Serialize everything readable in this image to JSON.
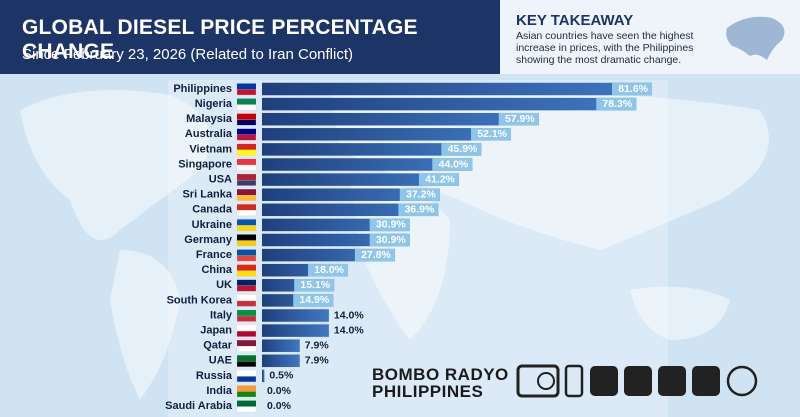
{
  "header": {
    "title": "GLOBAL DIESEL PRICE PERCENTAGE CHANGE",
    "subtitle": "Since February 23, 2026 (Related to Iran Conflict)"
  },
  "key_takeaway": {
    "title": "KEY TAKEAWAY",
    "text": "Asian countries have seen the highest increase in prices, with the Philippines showing the most dramatic change."
  },
  "chart_data": {
    "type": "bar",
    "orientation": "horizontal",
    "categories": [
      "Philippines",
      "Nigeria",
      "Malaysia",
      "Australia",
      "Vietnam",
      "Singapore",
      "USA",
      "Sri Lanka",
      "Canada",
      "Ukraine",
      "Germany",
      "France",
      "China",
      "UK",
      "South Korea",
      "Italy",
      "Japan",
      "Qatar",
      "UAE",
      "Russia",
      "India",
      "Saudi Arabia"
    ],
    "values": [
      81.6,
      78.3,
      57.9,
      52.1,
      45.9,
      44.0,
      41.2,
      37.2,
      36.9,
      30.9,
      30.9,
      27.8,
      18.0,
      15.1,
      14.9,
      14.0,
      14.0,
      7.9,
      7.9,
      0.5,
      0.0,
      0.0
    ],
    "value_labels": [
      "81.6%",
      "78.3%",
      "57.9%",
      "52.1%",
      "45.9%",
      "44.0%",
      "41.2%",
      "37.2%",
      "36.9%",
      "30.9%",
      "30.9%",
      "27.8%",
      "18.0%",
      "15.1%",
      "14.9%",
      "14.0%",
      "14.0%",
      "7.9%",
      "7.9%",
      "0.5%",
      "0.0%",
      "0.0%"
    ],
    "color": "#1f3f7c"
  },
  "branding": {
    "line1": "BOMBO RADYO",
    "line2": "PHILIPPINES"
  }
}
